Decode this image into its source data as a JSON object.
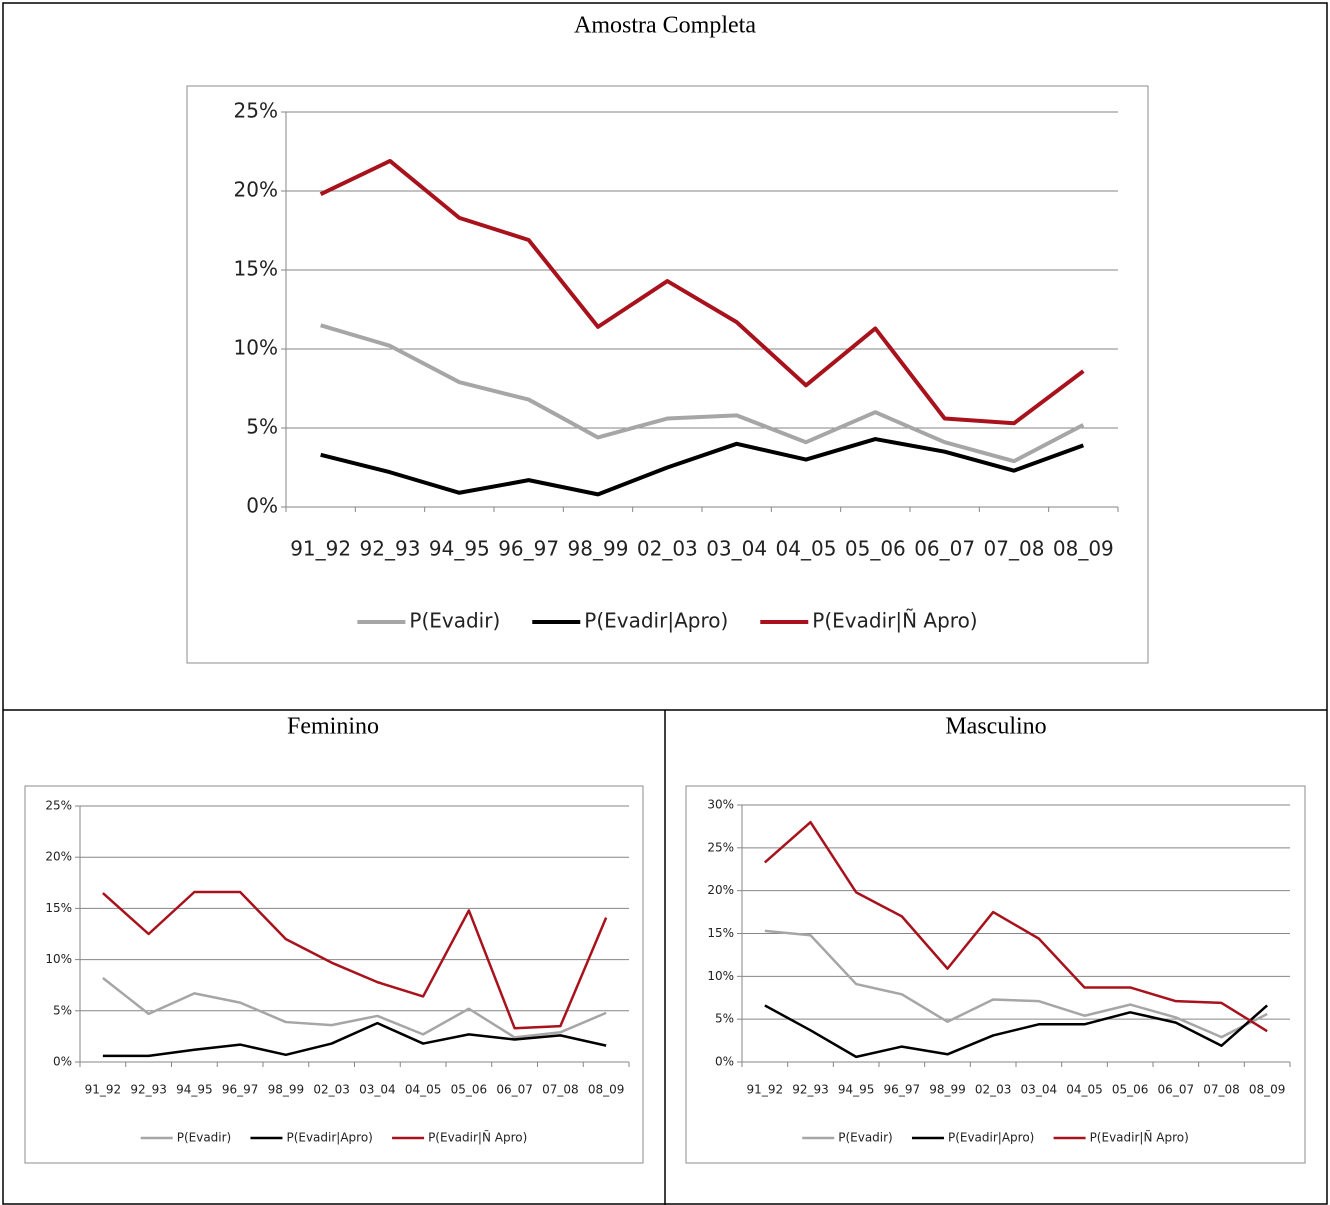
{
  "chart_data": [
    {
      "type": "line",
      "title": "Amostra Completa",
      "categories": [
        "91_92",
        "92_93",
        "94_95",
        "96_97",
        "98_99",
        "02_03",
        "03_04",
        "04_05",
        "05_06",
        "06_07",
        "07_08",
        "08_09"
      ],
      "ylim": [
        0,
        25
      ],
      "yticks": [
        {
          "value": 0,
          "label": "0%"
        },
        {
          "value": 5,
          "label": "5%"
        },
        {
          "value": 10,
          "label": "10%"
        },
        {
          "value": 15,
          "label": "15%"
        },
        {
          "value": 20,
          "label": "20%"
        },
        {
          "value": 25,
          "label": "25%"
        }
      ],
      "grid": true,
      "legend": "bottom",
      "series": [
        {
          "name": "P(Evadir)",
          "color": "#a6a6a6",
          "values": [
            11.5,
            10.2,
            7.9,
            6.8,
            4.4,
            5.6,
            5.8,
            4.1,
            6.0,
            4.1,
            2.9,
            5.2
          ]
        },
        {
          "name": "P(Evadir|Apro)",
          "color": "#000000",
          "values": [
            3.3,
            2.2,
            0.9,
            1.7,
            0.8,
            2.5,
            4.0,
            3.0,
            4.3,
            3.5,
            2.3,
            3.9
          ]
        },
        {
          "name": "P(Evadir|Ñ Apro)",
          "color": "#a8121c",
          "values": [
            19.8,
            21.9,
            18.3,
            16.9,
            11.4,
            14.3,
            11.7,
            7.7,
            11.3,
            5.6,
            5.3,
            8.6
          ]
        }
      ]
    },
    {
      "type": "line",
      "title": "Feminino",
      "categories": [
        "91_92",
        "92_93",
        "94_95",
        "96_97",
        "98_99",
        "02_03",
        "03_04",
        "04_05",
        "05_06",
        "06_07",
        "07_08",
        "08_09"
      ],
      "ylim": [
        0,
        25
      ],
      "yticks": [
        {
          "value": 0,
          "label": "0%"
        },
        {
          "value": 5,
          "label": "5%"
        },
        {
          "value": 10,
          "label": "10%"
        },
        {
          "value": 15,
          "label": "15%"
        },
        {
          "value": 20,
          "label": "20%"
        },
        {
          "value": 25,
          "label": "25%"
        }
      ],
      "grid": true,
      "legend": "bottom",
      "series": [
        {
          "name": "P(Evadir)",
          "color": "#a6a6a6",
          "values": [
            8.2,
            4.7,
            6.7,
            5.8,
            3.9,
            3.6,
            4.5,
            2.7,
            5.2,
            2.4,
            2.9,
            4.8
          ]
        },
        {
          "name": "P(Evadir|Apro)",
          "color": "#000000",
          "values": [
            0.6,
            0.6,
            1.2,
            1.7,
            0.7,
            1.8,
            3.8,
            1.8,
            2.7,
            2.2,
            2.6,
            1.6
          ]
        },
        {
          "name": "P(Evadir|Ñ Apro)",
          "color": "#a8121c",
          "values": [
            16.5,
            12.5,
            16.6,
            16.6,
            12.0,
            9.7,
            7.8,
            6.4,
            14.8,
            3.3,
            3.5,
            14.1
          ]
        }
      ]
    },
    {
      "type": "line",
      "title": "Masculino",
      "categories": [
        "91_92",
        "92_93",
        "94_95",
        "96_97",
        "98_99",
        "02_03",
        "03_04",
        "04_05",
        "05_06",
        "06_07",
        "07_08",
        "08_09"
      ],
      "ylim": [
        0,
        30
      ],
      "yticks": [
        {
          "value": 0,
          "label": "0%"
        },
        {
          "value": 5,
          "label": "5%"
        },
        {
          "value": 10,
          "label": "10%"
        },
        {
          "value": 15,
          "label": "15%"
        },
        {
          "value": 20,
          "label": "20%"
        },
        {
          "value": 25,
          "label": "25%"
        },
        {
          "value": 30,
          "label": "30%"
        }
      ],
      "grid": true,
      "legend": "bottom",
      "series": [
        {
          "name": "P(Evadir)",
          "color": "#a6a6a6",
          "values": [
            15.3,
            14.8,
            9.1,
            7.9,
            4.7,
            7.3,
            7.1,
            5.4,
            6.7,
            5.2,
            2.9,
            5.6
          ]
        },
        {
          "name": "P(Evadir|Apro)",
          "color": "#000000",
          "values": [
            6.6,
            3.7,
            0.6,
            1.8,
            0.9,
            3.1,
            4.4,
            4.4,
            5.8,
            4.6,
            1.9,
            6.6
          ]
        },
        {
          "name": "P(Evadir|Ñ Apro)",
          "color": "#a8121c",
          "values": [
            23.3,
            28.0,
            19.8,
            17.0,
            10.9,
            17.5,
            14.4,
            8.7,
            8.7,
            7.1,
            6.9,
            3.6
          ]
        }
      ]
    }
  ]
}
